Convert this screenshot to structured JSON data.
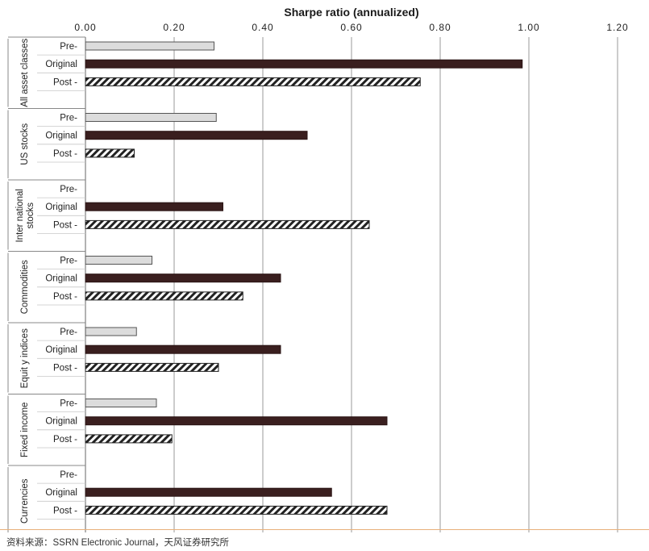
{
  "chart_data": {
    "type": "bar",
    "orientation": "horizontal",
    "title": "Sharpe ratio (annualized)",
    "xlim": [
      0,
      1.2
    ],
    "xticks": [
      "0.00",
      "0.20",
      "0.40",
      "0.60",
      "0.80",
      "1.00",
      "1.20"
    ],
    "xtick_values": [
      0,
      0.2,
      0.4,
      0.6,
      0.8,
      1.0,
      1.2
    ],
    "grid": true,
    "groups": [
      {
        "name": "All asset classes",
        "rows": [
          {
            "label": "Pre-",
            "value": 0.29
          },
          {
            "label": "Original",
            "value": 0.985
          },
          {
            "label": "Post -",
            "value": 0.755
          }
        ]
      },
      {
        "name": "US stocks",
        "rows": [
          {
            "label": "Pre-",
            "value": 0.295
          },
          {
            "label": "Original",
            "value": 0.5
          },
          {
            "label": "Post -",
            "value": 0.11
          }
        ]
      },
      {
        "name": "Inter national stocks",
        "name_lines": [
          "Inter national",
          "stocks"
        ],
        "rows": [
          {
            "label": "Pre-",
            "value": null
          },
          {
            "label": "Original",
            "value": 0.31
          },
          {
            "label": "Post -",
            "value": 0.64
          }
        ]
      },
      {
        "name": "Commodities",
        "rows": [
          {
            "label": "Pre-",
            "value": 0.15
          },
          {
            "label": "Original",
            "value": 0.44
          },
          {
            "label": "Post -",
            "value": 0.355
          }
        ]
      },
      {
        "name": "Equit y indices",
        "rows": [
          {
            "label": "Pre-",
            "value": 0.115
          },
          {
            "label": "Original",
            "value": 0.44
          },
          {
            "label": "Post -",
            "value": 0.3
          }
        ]
      },
      {
        "name": "Fixed income",
        "rows": [
          {
            "label": "Pre-",
            "value": 0.16
          },
          {
            "label": "Original",
            "value": 0.68
          },
          {
            "label": "Post -",
            "value": 0.195
          }
        ]
      },
      {
        "name": "Currencies",
        "rows": [
          {
            "label": "Pre-",
            "value": null
          },
          {
            "label": "Original",
            "value": 0.555
          },
          {
            "label": "Post -",
            "value": 0.68
          }
        ]
      }
    ],
    "styles": {
      "Pre-": {
        "fill": "#dcdcdc",
        "stroke": "#555555"
      },
      "Original": {
        "fill": "#3a1f1f",
        "stroke": "#2a1414"
      },
      "Post -": {
        "fill": "hatch",
        "stroke": "#222222"
      }
    }
  },
  "source": "资料来源：SSRN Electronic Journal，天风证券研究所",
  "colors": {
    "grid": "#9a9a9a",
    "rule": "#e8b07a"
  }
}
